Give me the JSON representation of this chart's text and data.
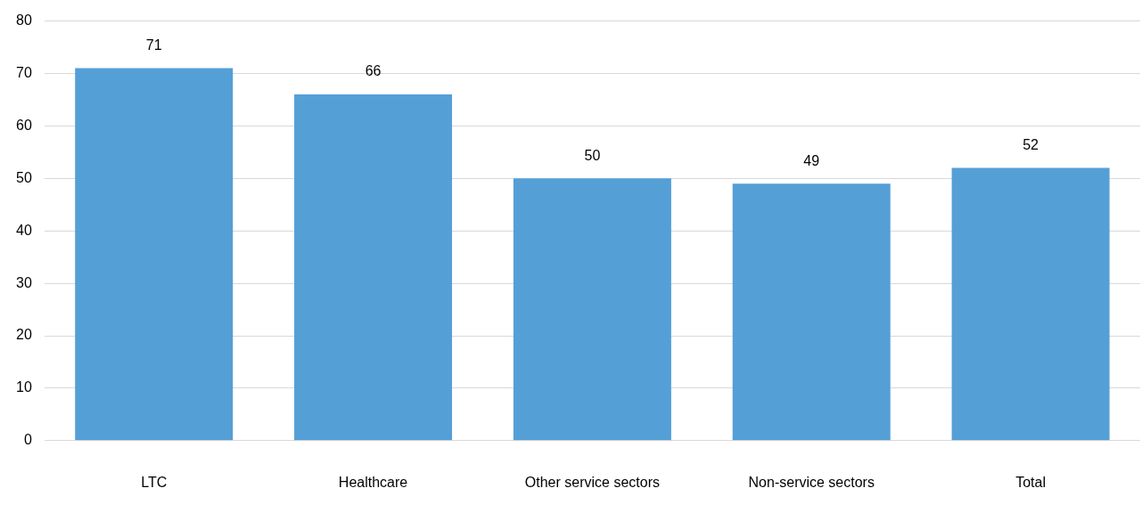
{
  "chart_data": {
    "type": "bar",
    "categories": [
      "LTC",
      "Healthcare",
      "Other service sectors",
      "Non-service sectors",
      "Total"
    ],
    "values": [
      71,
      66,
      50,
      49,
      52
    ],
    "color": "#559fd7",
    "ylim": [
      0,
      80
    ],
    "yticks": [
      0,
      10,
      20,
      30,
      40,
      50,
      60,
      70,
      80
    ],
    "grid": "y",
    "legend": false,
    "data_labels": true
  }
}
